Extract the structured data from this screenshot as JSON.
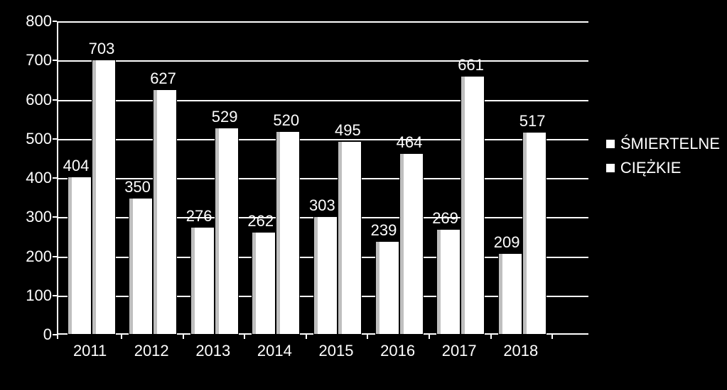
{
  "chart": {
    "type": "bar-grouped-3d",
    "background_color": "#000000",
    "axis_color": "#ffffff",
    "grid_color": "#ffffff",
    "text_color": "#ffffff",
    "bar_fill": "#ffffff",
    "bar_border": "#000000",
    "label_fontsize": 22,
    "tick_fontsize": 22,
    "ylim": [
      0,
      800
    ],
    "ytick_step": 100,
    "yticks": [
      0,
      100,
      200,
      300,
      400,
      500,
      600,
      700,
      800
    ],
    "categories": [
      "2011",
      "2012",
      "2013",
      "2014",
      "2015",
      "2016",
      "2017",
      "2018"
    ],
    "series": [
      {
        "name": "ŚMIERTELNE",
        "values": [
          404,
          350,
          276,
          262,
          303,
          239,
          269,
          209
        ]
      },
      {
        "name": "CIĘŻKIE",
        "values": [
          703,
          627,
          529,
          520,
          495,
          464,
          661,
          517
        ]
      }
    ],
    "legend": {
      "position": "right",
      "items": [
        "ŚMIERTELNE",
        "CIĘŻKIE"
      ]
    }
  }
}
